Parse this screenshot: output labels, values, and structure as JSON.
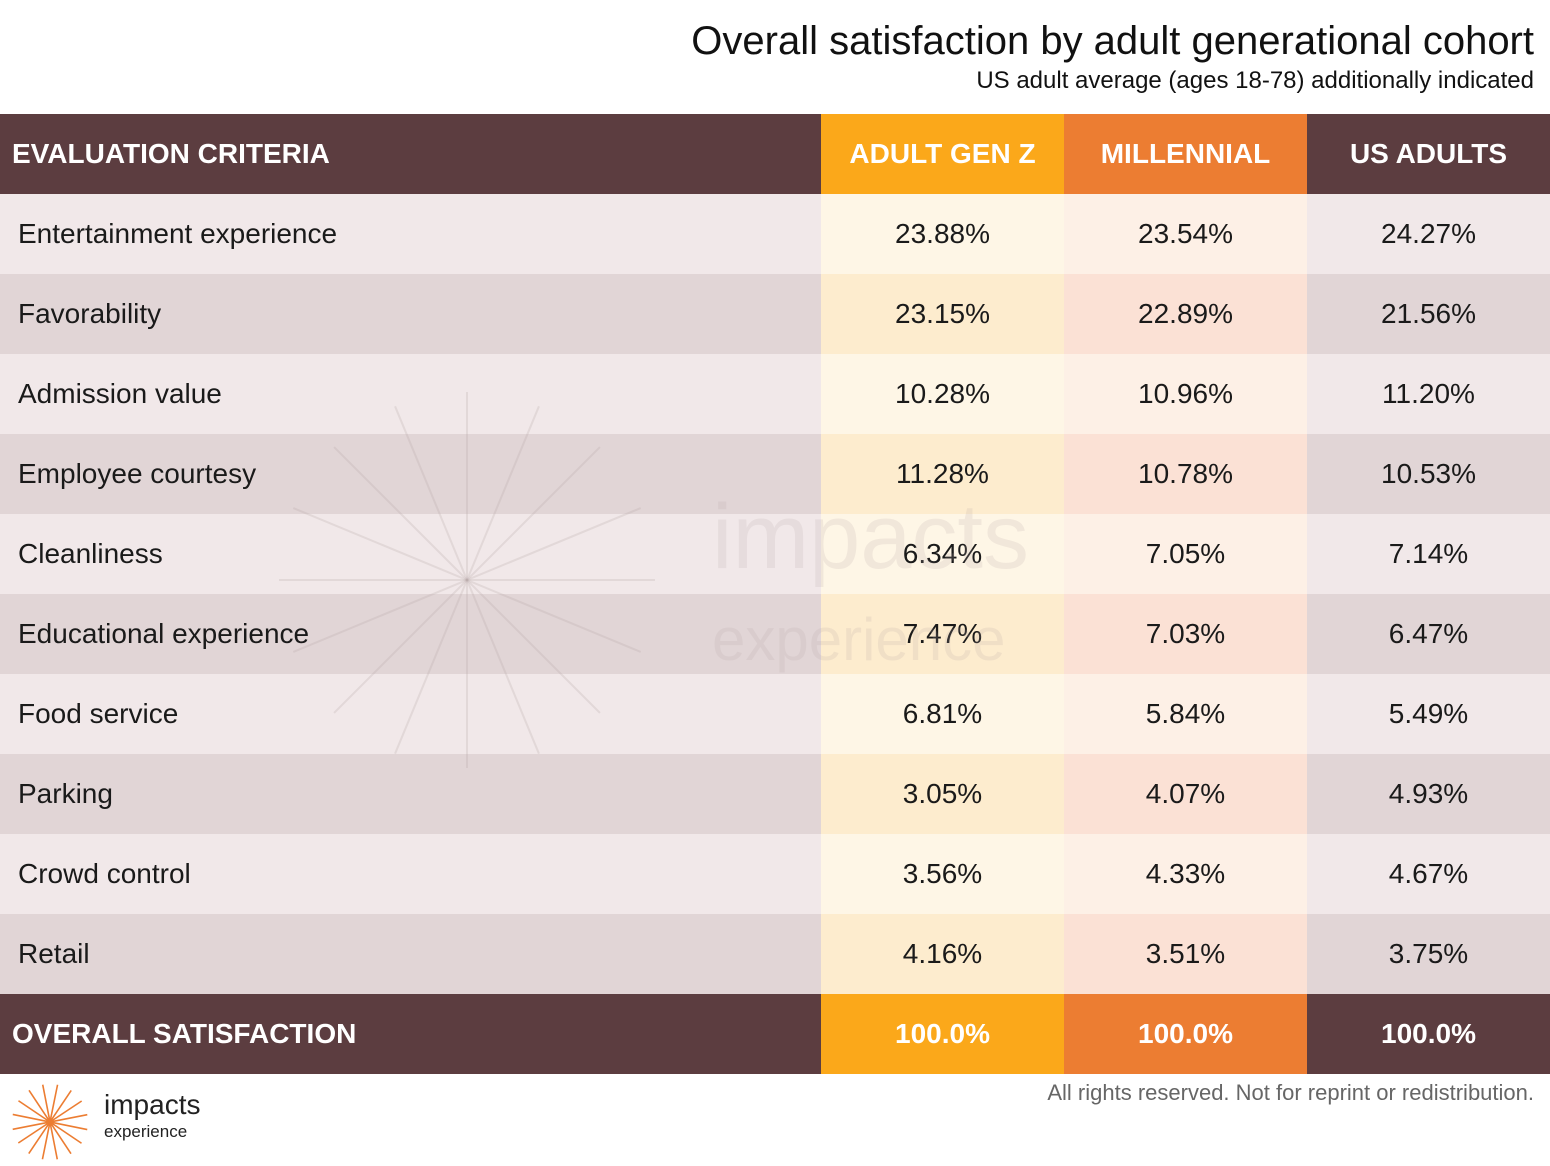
{
  "header": {
    "title": "Overall satisfaction by adult generational cohort",
    "subtitle": "US adult average (ages 18-78) additionally indicated"
  },
  "colors": {
    "header_brown": "#5c3d40",
    "gen_z": "#fba81a",
    "millennial": "#ec7d32"
  },
  "chart_data": {
    "type": "table",
    "columns": [
      "EVALUATION CRITERIA",
      "ADULT GEN Z",
      "MILLENNIAL",
      "US ADULTS"
    ],
    "rows": [
      [
        "Entertainment experience",
        "23.88%",
        "23.54%",
        "24.27%"
      ],
      [
        "Favorability",
        "23.15%",
        "22.89%",
        "21.56%"
      ],
      [
        "Admission value",
        "10.28%",
        "10.96%",
        "11.20%"
      ],
      [
        "Employee courtesy",
        "11.28%",
        "10.78%",
        "10.53%"
      ],
      [
        "Cleanliness",
        "6.34%",
        "7.05%",
        "7.14%"
      ],
      [
        "Educational experience",
        "7.47%",
        "7.03%",
        "6.47%"
      ],
      [
        "Food service",
        "6.81%",
        "5.84%",
        "5.49%"
      ],
      [
        "Parking",
        "3.05%",
        "4.07%",
        "4.93%"
      ],
      [
        "Crowd control",
        "3.56%",
        "4.33%",
        "4.67%"
      ],
      [
        "Retail",
        "4.16%",
        "3.51%",
        "3.75%"
      ]
    ],
    "total_row": [
      "OVERALL SATISFACTION",
      "100.0%",
      "100.0%",
      "100.0%"
    ]
  },
  "watermark": {
    "word": "impacts",
    "sub": "experience"
  },
  "logo": {
    "word": "impacts",
    "sub": "experience",
    "icon": "sunburst-icon"
  },
  "footer": {
    "note": "All rights reserved. Not for reprint or redistribution."
  }
}
